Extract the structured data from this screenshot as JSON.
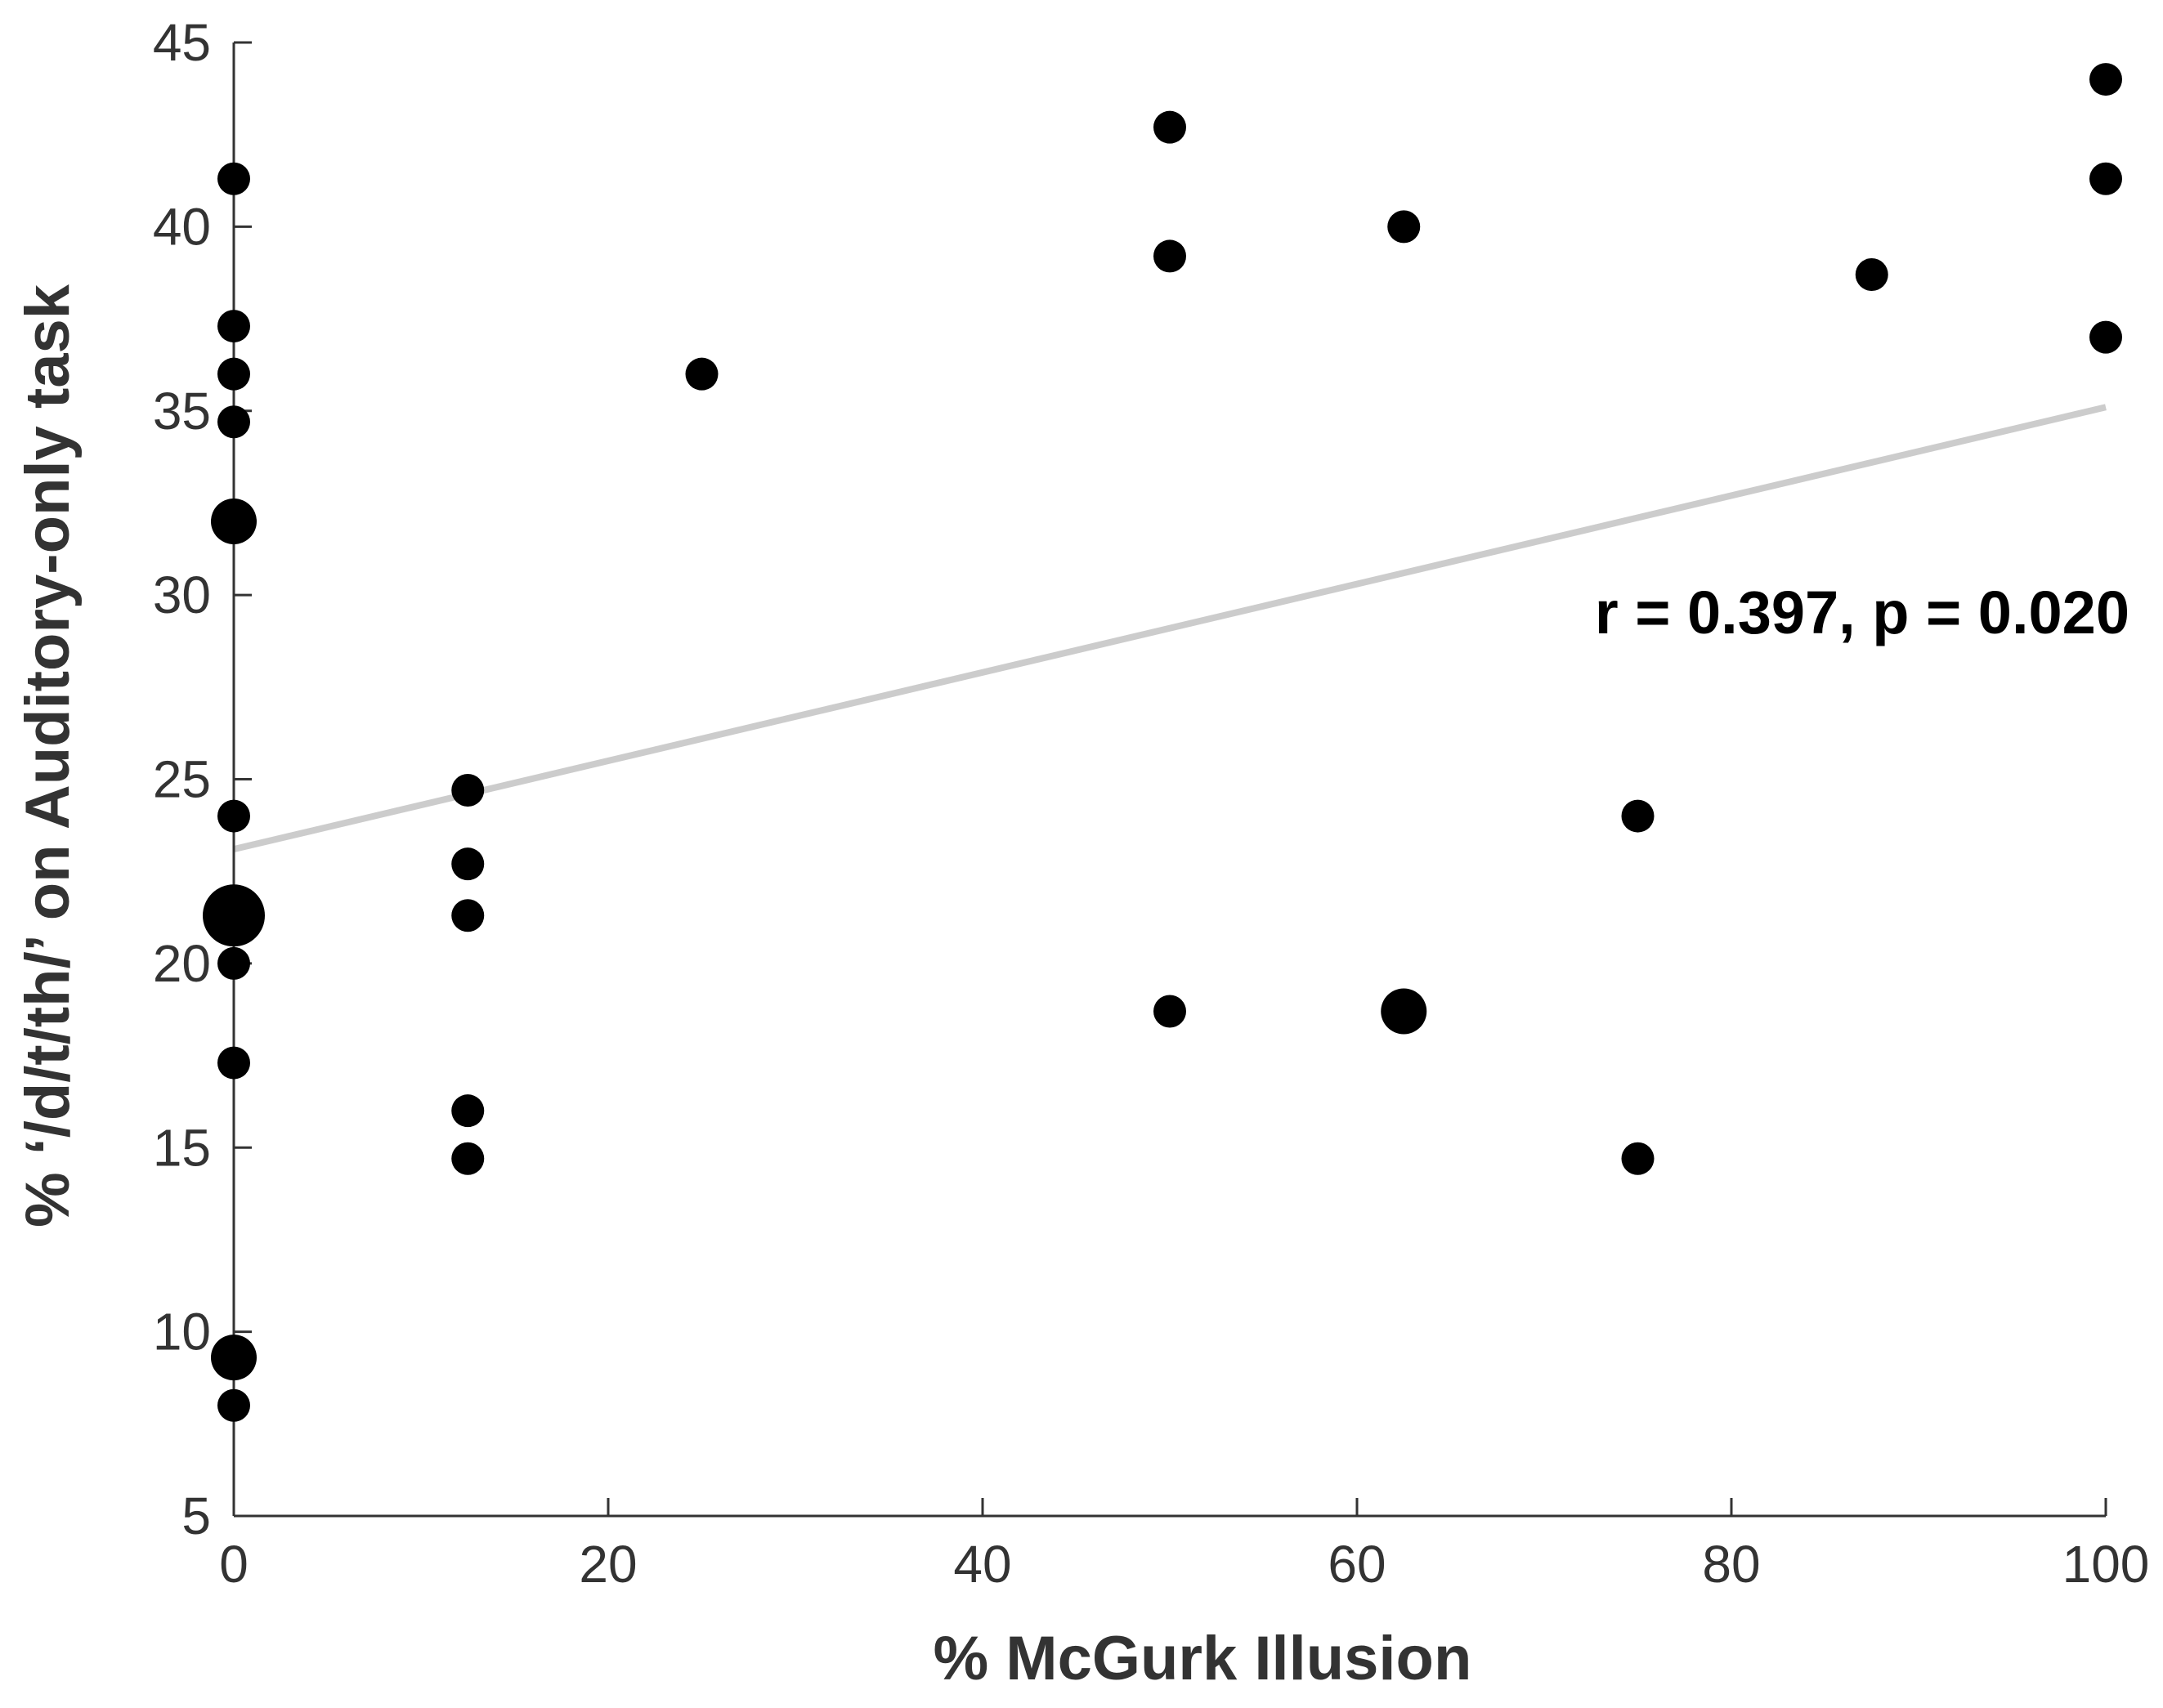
{
  "chart_data": {
    "type": "scatter",
    "xlabel": "% McGurk Illusion",
    "ylabel": "% ‘/d/t/th/’ on Auditory-only task",
    "xlim": [
      0,
      100
    ],
    "ylim": [
      5,
      45
    ],
    "xticks": [
      "0",
      "20",
      "40",
      "60",
      "80",
      "100"
    ],
    "yticks": [
      "5",
      "10",
      "15",
      "20",
      "25",
      "30",
      "35",
      "40",
      "45"
    ],
    "annotation": "r = 0.397, p = 0.020",
    "grid": false,
    "colors": {
      "points": "#000000",
      "fit_line": "#cccccc",
      "axis": "#333333"
    },
    "fit_line": {
      "x": [
        0,
        100
      ],
      "y": [
        23.1,
        35.1
      ]
    },
    "points": [
      {
        "x": 0,
        "y": 41.3,
        "n": 1
      },
      {
        "x": 0,
        "y": 37.3,
        "n": 1
      },
      {
        "x": 0,
        "y": 36.0,
        "n": 1
      },
      {
        "x": 0,
        "y": 34.7,
        "n": 1
      },
      {
        "x": 0,
        "y": 32.0,
        "n": 2
      },
      {
        "x": 0,
        "y": 24.0,
        "n": 1
      },
      {
        "x": 0,
        "y": 21.3,
        "n": 3
      },
      {
        "x": 0,
        "y": 20.0,
        "n": 1
      },
      {
        "x": 0,
        "y": 17.3,
        "n": 1
      },
      {
        "x": 0,
        "y": 9.3,
        "n": 2
      },
      {
        "x": 0,
        "y": 8.0,
        "n": 1
      },
      {
        "x": 12.5,
        "y": 24.7,
        "n": 1
      },
      {
        "x": 12.5,
        "y": 22.7,
        "n": 1
      },
      {
        "x": 12.5,
        "y": 21.3,
        "n": 1
      },
      {
        "x": 12.5,
        "y": 16.0,
        "n": 1
      },
      {
        "x": 12.5,
        "y": 14.7,
        "n": 1
      },
      {
        "x": 25,
        "y": 36.0,
        "n": 1
      },
      {
        "x": 50,
        "y": 42.7,
        "n": 1
      },
      {
        "x": 50,
        "y": 39.2,
        "n": 1
      },
      {
        "x": 50,
        "y": 18.7,
        "n": 1
      },
      {
        "x": 62.5,
        "y": 40.0,
        "n": 1
      },
      {
        "x": 62.5,
        "y": 18.7,
        "n": 2
      },
      {
        "x": 75,
        "y": 24.0,
        "n": 1
      },
      {
        "x": 75,
        "y": 14.7,
        "n": 1
      },
      {
        "x": 87.5,
        "y": 38.7,
        "n": 1
      },
      {
        "x": 100,
        "y": 44.0,
        "n": 1
      },
      {
        "x": 100,
        "y": 41.3,
        "n": 1
      },
      {
        "x": 100,
        "y": 37.0,
        "n": 1
      }
    ]
  }
}
